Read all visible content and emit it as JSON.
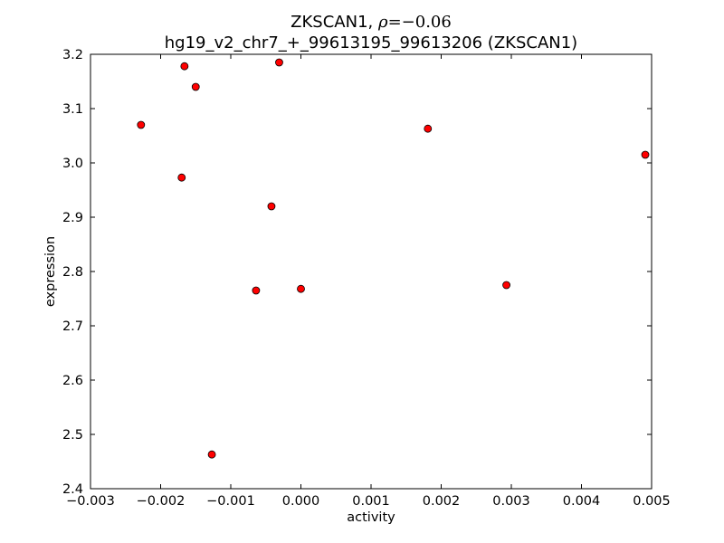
{
  "chart_data": {
    "type": "scatter",
    "title_line1_prefix": "ZKSCAN1, ",
    "title_rho_symbol": "ρ",
    "title_rho_value": "=−0.06",
    "title_line2": "hg19_v2_chr7_+_99613195_99613206 (ZKSCAN1)",
    "xlabel": "activity",
    "ylabel": "expression",
    "xlim": [
      -0.003,
      0.005
    ],
    "ylim": [
      2.4,
      3.2
    ],
    "xticks": [
      -0.003,
      -0.002,
      -0.001,
      0.0,
      0.001,
      0.002,
      0.003,
      0.004,
      0.005
    ],
    "xtick_labels": [
      "−0.003",
      "−0.002",
      "−0.001",
      "0.000",
      "0.001",
      "0.002",
      "0.003",
      "0.004",
      "0.005"
    ],
    "yticks": [
      2.4,
      2.5,
      2.6,
      2.7,
      2.8,
      2.9,
      3.0,
      3.1,
      3.2
    ],
    "ytick_labels": [
      "2.4",
      "2.5",
      "2.6",
      "2.7",
      "2.8",
      "2.9",
      "3.0",
      "3.1",
      "3.2"
    ],
    "grid": false,
    "marker_color": "#ff0000",
    "marker_edge_color": "#000000",
    "points": [
      {
        "x": -0.00228,
        "y": 3.07
      },
      {
        "x": -0.00166,
        "y": 3.178
      },
      {
        "x": -0.0015,
        "y": 3.14
      },
      {
        "x": -0.0017,
        "y": 2.973
      },
      {
        "x": -0.00031,
        "y": 3.185
      },
      {
        "x": -0.00042,
        "y": 2.92
      },
      {
        "x": -0.00064,
        "y": 2.765
      },
      {
        "x": 0.0,
        "y": 2.768
      },
      {
        "x": -0.00127,
        "y": 2.463
      },
      {
        "x": 0.00181,
        "y": 3.063
      },
      {
        "x": 0.00293,
        "y": 2.775
      },
      {
        "x": 0.00491,
        "y": 3.015
      }
    ]
  }
}
